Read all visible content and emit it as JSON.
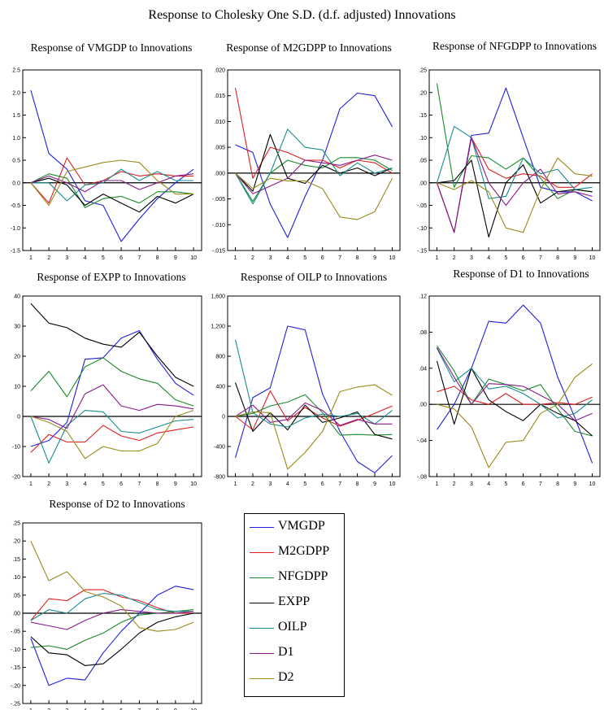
{
  "title": "Response to Cholesky One S.D. (d.f. adjusted) Innovations",
  "colors": {
    "VMGDP": "#1f1fe0",
    "M2GDPP": "#e01f1f",
    "NFGDPP": "#1a8a2a",
    "EXPP": "#000000",
    "OILP": "#1a8c8c",
    "D1": "#8a1a8a",
    "D2": "#9a8a1a"
  },
  "legend": [
    "VMGDP",
    "M2GDPP",
    "NFGDPP",
    "EXPP",
    "OILP",
    "D1",
    "D2"
  ],
  "chart_data": [
    {
      "type": "line",
      "title": "Response of VMGDP to Innovations",
      "x": [
        1,
        2,
        3,
        4,
        5,
        6,
        7,
        8,
        9,
        10
      ],
      "ylim": [
        -1.5,
        2.5
      ],
      "yticks": [
        -1.5,
        -1.0,
        -0.5,
        0.0,
        0.5,
        1.0,
        1.5,
        2.0,
        2.5
      ],
      "ytick_labels": [
        "-1.5",
        "-1.0",
        "-0.5",
        "0.0",
        "0.5",
        "1.0",
        "1.5",
        "2.0",
        "2.5"
      ],
      "series": [
        {
          "name": "VMGDP",
          "values": [
            2.05,
            0.65,
            0.3,
            -0.4,
            -0.5,
            -1.3,
            -0.8,
            -0.35,
            0.0,
            0.3
          ]
        },
        {
          "name": "M2GDPP",
          "values": [
            0.0,
            -0.45,
            0.55,
            -0.05,
            0.05,
            0.25,
            0.15,
            0.2,
            0.15,
            0.15
          ]
        },
        {
          "name": "NFGDPP",
          "values": [
            0.0,
            0.2,
            0.1,
            -0.55,
            -0.35,
            -0.3,
            -0.45,
            -0.2,
            -0.2,
            -0.25
          ]
        },
        {
          "name": "EXPP",
          "values": [
            0.0,
            0.1,
            -0.05,
            -0.5,
            -0.25,
            -0.45,
            -0.65,
            -0.3,
            -0.45,
            -0.25
          ]
        },
        {
          "name": "OILP",
          "values": [
            0.0,
            0.0,
            -0.4,
            -0.05,
            0.0,
            0.3,
            0.05,
            0.25,
            0.05,
            0.05
          ]
        },
        {
          "name": "D1",
          "values": [
            0.0,
            0.15,
            0.0,
            -0.2,
            0.05,
            0.05,
            -0.15,
            0.0,
            0.15,
            0.2
          ]
        },
        {
          "name": "D2",
          "values": [
            0.0,
            -0.5,
            0.25,
            0.35,
            0.45,
            0.5,
            0.45,
            0.05,
            -0.25,
            -0.25
          ]
        }
      ]
    },
    {
      "type": "line",
      "title": "Response of M2GDPP to Innovations",
      "x": [
        1,
        2,
        3,
        4,
        5,
        6,
        7,
        8,
        9,
        10
      ],
      "ylim": [
        -0.015,
        0.02
      ],
      "yticks": [
        -0.015,
        -0.01,
        -0.005,
        0.0,
        0.005,
        0.01,
        0.015,
        0.02
      ],
      "ytick_labels": [
        "-.015",
        "-.010",
        "-.005",
        ".000",
        ".005",
        ".010",
        ".015",
        ".020"
      ],
      "series": [
        {
          "name": "VMGDP",
          "values": [
            0.0055,
            0.004,
            -0.006,
            -0.0125,
            -0.0045,
            0.0025,
            0.0125,
            0.0155,
            0.015,
            0.009
          ]
        },
        {
          "name": "M2GDPP",
          "values": [
            0.0165,
            -0.001,
            0.005,
            0.004,
            0.0025,
            0.0025,
            0.001,
            0.0025,
            0.002,
            0.0
          ]
        },
        {
          "name": "NFGDPP",
          "values": [
            0.0,
            -0.0055,
            0.0,
            0.0025,
            0.0015,
            0.001,
            0.003,
            0.003,
            0.0025,
            0.0005
          ]
        },
        {
          "name": "EXPP",
          "values": [
            0.0,
            -0.0035,
            0.0075,
            -0.001,
            -0.002,
            0.0015,
            0.0,
            0.001,
            -0.0005,
            0.001
          ]
        },
        {
          "name": "OILP",
          "values": [
            0.0,
            -0.006,
            0.0,
            0.0085,
            0.005,
            0.0045,
            -0.0005,
            0.002,
            0.0,
            0.001
          ]
        },
        {
          "name": "D1",
          "values": [
            0.0,
            -0.004,
            -0.0025,
            -0.001,
            0.0025,
            0.002,
            0.0015,
            0.0025,
            0.0035,
            0.0025
          ]
        },
        {
          "name": "D2",
          "values": [
            0.0,
            -0.003,
            -0.001,
            -0.0015,
            -0.0015,
            -0.003,
            -0.0085,
            -0.009,
            -0.0075,
            -0.001
          ]
        }
      ]
    },
    {
      "type": "line",
      "title": "Response of NFGDPP to Innovations",
      "x": [
        1,
        2,
        3,
        4,
        5,
        6,
        7,
        8,
        9,
        10
      ],
      "ylim": [
        -0.15,
        0.25
      ],
      "yticks": [
        -0.15,
        -0.1,
        -0.05,
        0.0,
        0.05,
        0.1,
        0.15,
        0.2,
        0.25
      ],
      "ytick_labels": [
        "-.15",
        "-.10",
        "-.05",
        ".00",
        ".05",
        ".10",
        ".15",
        ".20",
        ".25"
      ],
      "series": [
        {
          "name": "VMGDP",
          "values": [
            0.0,
            -0.11,
            0.105,
            0.11,
            0.21,
            0.1,
            -0.01,
            -0.02,
            -0.02,
            -0.04
          ]
        },
        {
          "name": "M2GDPP",
          "values": [
            0.0,
            -0.11,
            0.1,
            0.03,
            0.01,
            0.02,
            0.015,
            -0.01,
            -0.01,
            0.02
          ]
        },
        {
          "name": "NFGDPP",
          "values": [
            0.22,
            -0.01,
            0.06,
            0.055,
            0.03,
            0.055,
            0.01,
            -0.035,
            -0.015,
            -0.02
          ]
        },
        {
          "name": "EXPP",
          "values": [
            0.0,
            0.005,
            0.05,
            -0.12,
            0.0,
            0.04,
            -0.045,
            -0.02,
            -0.015,
            -0.02
          ]
        },
        {
          "name": "OILP",
          "values": [
            0.0,
            0.125,
            0.1,
            -0.035,
            -0.03,
            0.055,
            0.02,
            0.03,
            -0.015,
            -0.01
          ]
        },
        {
          "name": "D1",
          "values": [
            0.0,
            -0.11,
            0.1,
            0.0,
            -0.05,
            0.0,
            0.03,
            -0.025,
            -0.02,
            -0.03
          ]
        },
        {
          "name": "D2",
          "values": [
            0.0,
            -0.015,
            0.005,
            -0.02,
            -0.1,
            -0.11,
            -0.015,
            0.055,
            0.02,
            0.015
          ]
        }
      ]
    },
    {
      "type": "line",
      "title": "Response of EXPP to Innovations",
      "x": [
        1,
        2,
        3,
        4,
        5,
        6,
        7,
        8,
        9,
        10
      ],
      "ylim": [
        -20,
        40
      ],
      "yticks": [
        -20,
        -10,
        0,
        10,
        20,
        30,
        40
      ],
      "ytick_labels": [
        "-20",
        "-10",
        "0",
        "10",
        "20",
        "30",
        "40"
      ],
      "series": [
        {
          "name": "VMGDP",
          "values": [
            -10,
            -8,
            -2,
            19,
            19.5,
            26,
            28.5,
            19,
            11,
            7
          ]
        },
        {
          "name": "M2GDPP",
          "values": [
            -12,
            -6,
            -8.5,
            -8.5,
            -3,
            -6.5,
            -8,
            -5.5,
            -4.5,
            -3.5
          ]
        },
        {
          "name": "NFGDPP",
          "values": [
            8.5,
            15,
            6.5,
            16.5,
            19.5,
            15,
            12.5,
            11,
            5.5,
            3.5
          ]
        },
        {
          "name": "EXPP",
          "values": [
            37.5,
            31,
            29.5,
            26,
            24,
            23,
            28,
            20,
            13,
            10
          ]
        },
        {
          "name": "OILP",
          "values": [
            0,
            -15.5,
            -3,
            2,
            1.5,
            -5,
            -5.5,
            -3.5,
            -1.5,
            -1
          ]
        },
        {
          "name": "D1",
          "values": [
            0,
            -1,
            -4,
            7.5,
            10.5,
            3.5,
            2,
            4,
            3.5,
            2.5
          ]
        },
        {
          "name": "D2",
          "values": [
            0,
            -2,
            -5,
            -14,
            -10,
            -11.5,
            -11.5,
            -9,
            0,
            2
          ]
        }
      ]
    },
    {
      "type": "line",
      "title": "Response of OILP to Innovations",
      "x": [
        1,
        2,
        3,
        4,
        5,
        6,
        7,
        8,
        9,
        10
      ],
      "ylim": [
        -800,
        1600
      ],
      "yticks": [
        -800,
        -400,
        0,
        400,
        800,
        1200,
        1600
      ],
      "ytick_labels": [
        "-800",
        "-400",
        "0",
        "400",
        "800",
        "1,200",
        "1,600"
      ],
      "series": [
        {
          "name": "VMGDP",
          "values": [
            -550,
            250,
            380,
            1200,
            1150,
            300,
            -200,
            -600,
            -750,
            -520
          ]
        },
        {
          "name": "M2GDPP",
          "values": [
            0,
            -180,
            340,
            -60,
            120,
            -20,
            -130,
            -50,
            40,
            140
          ]
        },
        {
          "name": "NFGDPP",
          "values": [
            0,
            40,
            140,
            190,
            290,
            50,
            -250,
            -240,
            -250,
            -240
          ]
        },
        {
          "name": "EXPP",
          "values": [
            450,
            -200,
            50,
            -180,
            150,
            -80,
            -20,
            60,
            -240,
            -300
          ]
        },
        {
          "name": "OILP",
          "values": [
            1020,
            50,
            -100,
            -140,
            -20,
            30,
            0,
            40,
            -100,
            80
          ]
        },
        {
          "name": "D1",
          "values": [
            0,
            150,
            -80,
            -40,
            180,
            80,
            -120,
            -40,
            -100,
            -100
          ]
        },
        {
          "name": "D2",
          "values": [
            0,
            60,
            50,
            -700,
            -480,
            -200,
            330,
            390,
            420,
            280
          ]
        }
      ]
    },
    {
      "type": "line",
      "title": "Response of D1 to Innovations",
      "x": [
        1,
        2,
        3,
        4,
        5,
        6,
        7,
        8,
        9,
        10
      ],
      "ylim": [
        -0.08,
        0.12
      ],
      "yticks": [
        -0.08,
        -0.04,
        0.0,
        0.04,
        0.08,
        0.12
      ],
      "ytick_labels": [
        "-.08",
        "-.04",
        ".00",
        ".04",
        ".08",
        ".12"
      ],
      "series": [
        {
          "name": "VMGDP",
          "values": [
            -0.028,
            0.0,
            0.04,
            0.092,
            0.09,
            0.11,
            0.09,
            0.03,
            -0.015,
            -0.065
          ]
        },
        {
          "name": "M2GDPP",
          "values": [
            0.014,
            0.02,
            0.005,
            0.0,
            0.012,
            0.0,
            0.0,
            0.002,
            0.0,
            0.008
          ]
        },
        {
          "name": "NFGDPP",
          "values": [
            0.065,
            0.037,
            0.0,
            0.028,
            0.022,
            0.015,
            0.022,
            -0.005,
            -0.03,
            -0.035
          ]
        },
        {
          "name": "EXPP",
          "values": [
            0.048,
            -0.022,
            0.04,
            0.005,
            -0.008,
            -0.018,
            0.0,
            -0.01,
            -0.018,
            -0.035
          ]
        },
        {
          "name": "OILP",
          "values": [
            0.062,
            0.025,
            0.04,
            0.017,
            0.02,
            0.012,
            0.0,
            -0.015,
            -0.01,
            0.005
          ]
        },
        {
          "name": "D1",
          "values": [
            0.063,
            0.03,
            0.0,
            0.023,
            0.022,
            0.02,
            0.01,
            0.0,
            -0.018,
            -0.01
          ]
        },
        {
          "name": "D2",
          "values": [
            0.0,
            -0.005,
            -0.025,
            -0.07,
            -0.042,
            -0.04,
            -0.01,
            0.0,
            0.03,
            0.045
          ]
        }
      ]
    },
    {
      "type": "line",
      "title": "Response of D2 to Innovations",
      "x": [
        1,
        2,
        3,
        4,
        5,
        6,
        7,
        8,
        9,
        10
      ],
      "ylim": [
        -0.25,
        0.25
      ],
      "yticks": [
        -0.25,
        -0.2,
        -0.15,
        -0.1,
        -0.05,
        0.0,
        0.05,
        0.1,
        0.15,
        0.2,
        0.25
      ],
      "ytick_labels": [
        "-.25",
        "-.20",
        "-.15",
        "-.10",
        "-.05",
        ".00",
        ".05",
        ".10",
        ".15",
        ".20",
        ".25"
      ],
      "series": [
        {
          "name": "VMGDP",
          "values": [
            -0.07,
            -0.2,
            -0.18,
            -0.185,
            -0.11,
            -0.05,
            0.0,
            0.05,
            0.075,
            0.065
          ]
        },
        {
          "name": "M2GDPP",
          "values": [
            -0.02,
            0.04,
            0.035,
            0.065,
            0.065,
            0.045,
            0.035,
            0.015,
            0.0,
            0.0
          ]
        },
        {
          "name": "NFGDPP",
          "values": [
            -0.095,
            -0.09,
            -0.1,
            -0.075,
            -0.055,
            -0.025,
            -0.005,
            0.0,
            0.005,
            0.01
          ]
        },
        {
          "name": "EXPP",
          "values": [
            -0.065,
            -0.11,
            -0.115,
            -0.145,
            -0.14,
            -0.1,
            -0.055,
            -0.025,
            -0.01,
            0.0
          ]
        },
        {
          "name": "OILP",
          "values": [
            -0.02,
            0.01,
            0.0,
            0.04,
            0.055,
            0.05,
            0.03,
            0.01,
            0.005,
            0.005
          ]
        },
        {
          "name": "D1",
          "values": [
            -0.025,
            -0.035,
            -0.045,
            -0.02,
            0.0,
            0.01,
            0.005,
            0.0,
            0.0,
            0.005
          ]
        },
        {
          "name": "D2",
          "values": [
            0.2,
            0.09,
            0.115,
            0.06,
            0.045,
            0.02,
            -0.04,
            -0.05,
            -0.045,
            -0.025
          ]
        }
      ]
    }
  ]
}
